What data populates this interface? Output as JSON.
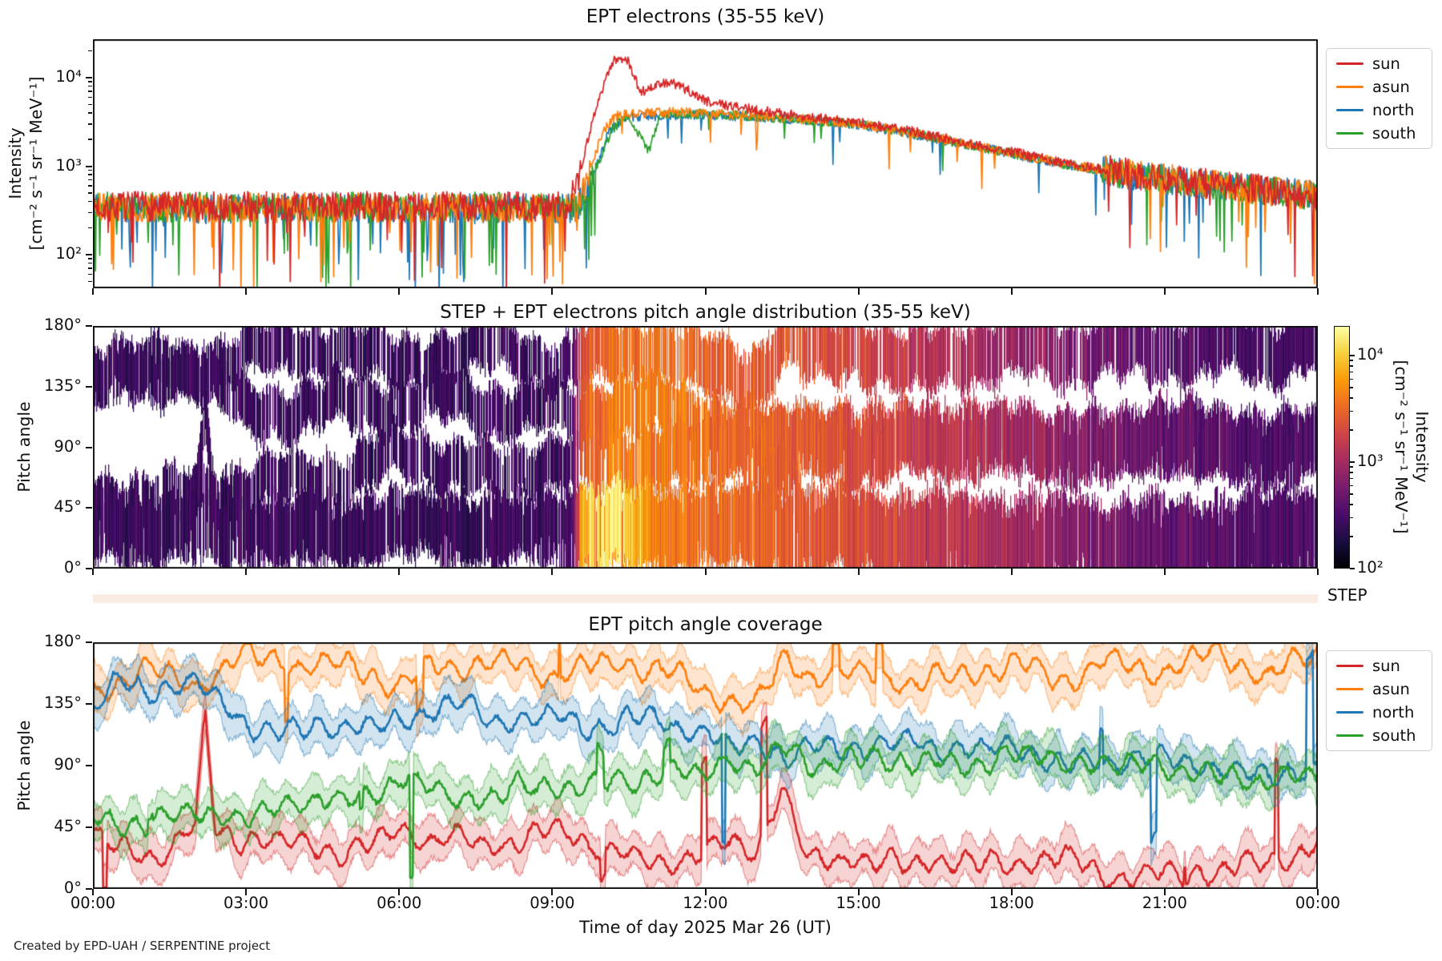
{
  "footer": {
    "text": "Created by EPD-UAH / SERPENTINE project"
  },
  "chart_data": [
    {
      "type": "line",
      "title": "EPT electrons (35-55 keV)",
      "ylabel": [
        "Intensity",
        "[cm⁻² s⁻¹ sr⁻¹ MeV⁻¹]"
      ],
      "yscale": "log",
      "ylim_log": [
        1.62,
        4.43
      ],
      "xlim_hours": [
        0,
        24
      ],
      "grid": false,
      "legend_position": "outside-upper-right",
      "yticks": [
        {
          "label": "10²",
          "log": 2
        },
        {
          "label": "10³",
          "log": 3
        },
        {
          "label": "10⁴",
          "log": 4
        }
      ],
      "legend": [
        {
          "label": "sun",
          "color": "#d62728"
        },
        {
          "label": "asun",
          "color": "#ff7f0e"
        },
        {
          "label": "north",
          "color": "#1f77b4"
        },
        {
          "label": "south",
          "color": "#2ca02c"
        }
      ],
      "noise": {
        "quiet_dex": 0.17,
        "active_dex": 0.055,
        "quiet_dip_chance": 0.05,
        "active_dip_chance": 0.012,
        "quiet_threshold": 900
      },
      "series": [
        {
          "name": "sun",
          "color": "#d62728",
          "anchors": [
            [
              0,
              350
            ],
            [
              9.3,
              350
            ],
            [
              9.55,
              900
            ],
            [
              9.8,
              3500
            ],
            [
              10.05,
              10000
            ],
            [
              10.2,
              15500
            ],
            [
              10.45,
              17000
            ],
            [
              10.73,
              6900
            ],
            [
              11.0,
              8000
            ],
            [
              11.3,
              8900
            ],
            [
              11.7,
              7000
            ],
            [
              12.0,
              5500
            ],
            [
              12.5,
              4800
            ],
            [
              13,
              4300
            ],
            [
              14,
              3600
            ],
            [
              15,
              3100
            ],
            [
              16,
              2500
            ],
            [
              17,
              1900
            ],
            [
              18,
              1450
            ],
            [
              19,
              1100
            ],
            [
              20,
              880
            ],
            [
              21,
              730
            ],
            [
              22,
              620
            ],
            [
              23,
              540
            ],
            [
              24,
              470
            ]
          ]
        },
        {
          "name": "asun",
          "color": "#ff7f0e",
          "anchors": [
            [
              0,
              340
            ],
            [
              9.5,
              340
            ],
            [
              9.75,
              900
            ],
            [
              10.0,
              2600
            ],
            [
              10.3,
              3900
            ],
            [
              11,
              4000
            ],
            [
              11.5,
              4100
            ],
            [
              12,
              4000
            ],
            [
              13,
              3700
            ],
            [
              14,
              3400
            ],
            [
              15,
              3000
            ],
            [
              16,
              2400
            ],
            [
              17,
              1850
            ],
            [
              18,
              1400
            ],
            [
              19,
              1080
            ],
            [
              20,
              860
            ],
            [
              21,
              720
            ],
            [
              22,
              610
            ],
            [
              23,
              530
            ],
            [
              24,
              465
            ]
          ]
        },
        {
          "name": "north",
          "color": "#1f77b4",
          "anchors": [
            [
              0,
              330
            ],
            [
              9.5,
              330
            ],
            [
              9.8,
              800
            ],
            [
              10.1,
              2400
            ],
            [
              10.4,
              3600
            ],
            [
              11,
              3700
            ],
            [
              12,
              3800
            ],
            [
              13,
              3600
            ],
            [
              14,
              3300
            ],
            [
              15,
              2950
            ],
            [
              16,
              2350
            ],
            [
              17,
              1800
            ],
            [
              18,
              1380
            ],
            [
              19,
              1060
            ],
            [
              20,
              850
            ],
            [
              21,
              710
            ],
            [
              22,
              600
            ],
            [
              23,
              525
            ],
            [
              24,
              460
            ]
          ]
        },
        {
          "name": "south",
          "color": "#2ca02c",
          "anchors": [
            [
              0,
              345
            ],
            [
              9.55,
              345
            ],
            [
              9.85,
              900
            ],
            [
              10.15,
              2500
            ],
            [
              10.45,
              3700
            ],
            [
              10.9,
              1500
            ],
            [
              11.1,
              3800
            ],
            [
              12,
              3900
            ],
            [
              13,
              3650
            ],
            [
              14,
              3350
            ],
            [
              15,
              2980
            ],
            [
              16,
              2380
            ],
            [
              17,
              1820
            ],
            [
              18,
              1400
            ],
            [
              19,
              1070
            ],
            [
              20,
              855
            ],
            [
              21,
              715
            ],
            [
              22,
              605
            ],
            [
              23,
              530
            ],
            [
              24,
              462
            ]
          ]
        }
      ]
    },
    {
      "type": "heatmap",
      "title": "STEP + EPT electrons pitch angle distribution (35-55 keV)",
      "ylabel": "Pitch angle",
      "ylim": [
        0,
        180
      ],
      "yticks": [
        {
          "label": "0°",
          "value": 0
        },
        {
          "label": "45°",
          "value": 45
        },
        {
          "label": "90°",
          "value": 90
        },
        {
          "label": "135°",
          "value": 135
        },
        {
          "label": "180°",
          "value": 180
        }
      ],
      "colorbar": {
        "label": [
          "Intensity",
          "[cm⁻² s⁻¹ sr⁻¹ MeV⁻¹]"
        ],
        "scale": "log",
        "vrange_log": [
          2,
          4.28
        ],
        "ticks": [
          {
            "label": "10²",
            "log": 2
          },
          {
            "label": "10³",
            "log": 3
          },
          {
            "label": "10⁴",
            "log": 4
          }
        ]
      },
      "colormap": "inferno",
      "colormap_stops": [
        "#000004",
        "#1b0c41",
        "#4a0c6b",
        "#781c6d",
        "#a52c60",
        "#cf4446",
        "#ed6925",
        "#fb9a06",
        "#f7d03c",
        "#fcffa4"
      ],
      "onset_hour": 9.4,
      "intensity_anchors": [
        [
          0,
          270
        ],
        [
          2,
          260
        ],
        [
          4,
          265
        ],
        [
          6,
          255
        ],
        [
          8,
          260
        ],
        [
          9.3,
          270
        ],
        [
          9.45,
          700
        ],
        [
          9.6,
          2600
        ],
        [
          9.8,
          3600
        ],
        [
          10.2,
          4200
        ],
        [
          11,
          4300
        ],
        [
          12,
          3500
        ],
        [
          13,
          3100
        ],
        [
          14,
          2700
        ],
        [
          15,
          2200
        ],
        [
          16,
          1700
        ],
        [
          17,
          1300
        ],
        [
          18,
          1000
        ],
        [
          19,
          750
        ],
        [
          20,
          580
        ],
        [
          21,
          470
        ],
        [
          22,
          400
        ],
        [
          23,
          340
        ],
        [
          24,
          310
        ]
      ],
      "burst": {
        "t_start": 9.45,
        "t_end": 11.8,
        "t_center": 10.0,
        "t_sigma": 0.55,
        "max_boost": 3.2
      },
      "step_band": {
        "name": "step",
        "halfwidth": 30,
        "anchors": [
          [
            0,
            30
          ],
          [
            3,
            26
          ],
          [
            6,
            32
          ],
          [
            9,
            28
          ],
          [
            12,
            30
          ],
          [
            15,
            26
          ],
          [
            18,
            22
          ],
          [
            21,
            18
          ],
          [
            24,
            26
          ]
        ]
      },
      "ept_band_halfwidth": 22,
      "step_row_label": "STEP",
      "step_row_color": "#fbece3"
    },
    {
      "type": "line-band",
      "title": "EPT pitch angle coverage",
      "ylabel": "Pitch angle",
      "xlabel": "Time of day 2025 Mar 26 (UT)",
      "ylim": [
        0,
        180
      ],
      "yticks": [
        {
          "label": "0°",
          "value": 0
        },
        {
          "label": "45°",
          "value": 45
        },
        {
          "label": "90°",
          "value": 90
        },
        {
          "label": "135°",
          "value": 135
        },
        {
          "label": "180°",
          "value": 180
        }
      ],
      "xticks": [
        {
          "label": "00:00",
          "hour": 0
        },
        {
          "label": "03:00",
          "hour": 3
        },
        {
          "label": "06:00",
          "hour": 6
        },
        {
          "label": "09:00",
          "hour": 9
        },
        {
          "label": "12:00",
          "hour": 12
        },
        {
          "label": "15:00",
          "hour": 15
        },
        {
          "label": "18:00",
          "hour": 18
        },
        {
          "label": "21:00",
          "hour": 21
        },
        {
          "label": "00:00",
          "hour": 24
        }
      ],
      "legend": [
        {
          "label": "sun",
          "color": "#d62728"
        },
        {
          "label": "asun",
          "color": "#ff7f0e"
        },
        {
          "label": "north",
          "color": "#1f77b4"
        },
        {
          "label": "south",
          "color": "#2ca02c"
        }
      ],
      "band": {
        "halfwidth": 14,
        "fill_alpha": 0.2,
        "edge_alpha": 0.5,
        "osc_amp": 6,
        "osc_period": 0.5,
        "spike_chance": 0.004
      },
      "series": [
        {
          "name": "sun",
          "color": "#d62728",
          "anchors": [
            [
              0,
              40
            ],
            [
              0.5,
              30
            ],
            [
              1,
              25
            ],
            [
              2,
              45
            ],
            [
              2.2,
              120
            ],
            [
              2.4,
              40
            ],
            [
              3,
              30
            ],
            [
              4,
              25
            ],
            [
              5,
              20
            ],
            [
              6,
              35
            ],
            [
              7,
              30
            ],
            [
              8,
              25
            ],
            [
              9,
              35
            ],
            [
              10,
              30
            ],
            [
              11,
              25
            ],
            [
              12,
              35
            ],
            [
              13,
              30
            ],
            [
              13.5,
              80
            ],
            [
              14,
              25
            ],
            [
              15,
              30
            ],
            [
              16,
              20
            ],
            [
              17,
              25
            ],
            [
              18,
              20
            ],
            [
              19,
              25
            ],
            [
              20,
              15
            ],
            [
              21,
              20
            ],
            [
              22,
              15
            ],
            [
              23,
              20
            ],
            [
              24,
              30
            ]
          ]
        },
        {
          "name": "asun",
          "color": "#ff7f0e",
          "anchors": [
            [
              0,
              140
            ],
            [
              1,
              155
            ],
            [
              2,
              140
            ],
            [
              3,
              165
            ],
            [
              4,
              160
            ],
            [
              5,
              165
            ],
            [
              6,
              150
            ],
            [
              7,
              160
            ],
            [
              8,
              165
            ],
            [
              9,
              150
            ],
            [
              10,
              160
            ],
            [
              11,
              165
            ],
            [
              12,
              150
            ],
            [
              13,
              140
            ],
            [
              13.6,
              175
            ],
            [
              14,
              160
            ],
            [
              15,
              165
            ],
            [
              16,
              150
            ],
            [
              17,
              160
            ],
            [
              18,
              165
            ],
            [
              19,
              160
            ],
            [
              20,
              165
            ],
            [
              21,
              160
            ],
            [
              22,
              170
            ],
            [
              23,
              155
            ],
            [
              24,
              178
            ]
          ]
        },
        {
          "name": "north",
          "color": "#1f77b4",
          "anchors": [
            [
              0,
              135
            ],
            [
              0.5,
              150
            ],
            [
              1,
              140
            ],
            [
              2,
              150
            ],
            [
              3,
              120
            ],
            [
              4,
              115
            ],
            [
              5,
              125
            ],
            [
              6,
              120
            ],
            [
              7,
              130
            ],
            [
              8,
              115
            ],
            [
              9,
              120
            ],
            [
              10,
              115
            ],
            [
              11,
              120
            ],
            [
              12,
              110
            ],
            [
              12.5,
              95
            ],
            [
              13,
              100
            ],
            [
              13.6,
              90
            ],
            [
              14,
              100
            ],
            [
              15,
              95
            ],
            [
              16,
              100
            ],
            [
              17,
              95
            ],
            [
              18,
              100
            ],
            [
              19,
              90
            ],
            [
              20,
              95
            ],
            [
              21,
              100
            ],
            [
              22,
              95
            ],
            [
              23,
              90
            ],
            [
              24,
              95
            ]
          ]
        },
        {
          "name": "south",
          "color": "#2ca02c",
          "anchors": [
            [
              0,
              55
            ],
            [
              1,
              45
            ],
            [
              2,
              60
            ],
            [
              3,
              55
            ],
            [
              4,
              70
            ],
            [
              5,
              65
            ],
            [
              6,
              90
            ],
            [
              7,
              75
            ],
            [
              8,
              70
            ],
            [
              9,
              80
            ],
            [
              10,
              75
            ],
            [
              11,
              85
            ],
            [
              12,
              80
            ],
            [
              12.5,
              95
            ],
            [
              13,
              85
            ],
            [
              13.6,
              100
            ],
            [
              14,
              90
            ],
            [
              15,
              85
            ],
            [
              16,
              95
            ],
            [
              17,
              90
            ],
            [
              18,
              95
            ],
            [
              19,
              85
            ],
            [
              20,
              90
            ],
            [
              21,
              95
            ],
            [
              22,
              90
            ],
            [
              23,
              85
            ],
            [
              24,
              90
            ]
          ]
        }
      ]
    }
  ]
}
